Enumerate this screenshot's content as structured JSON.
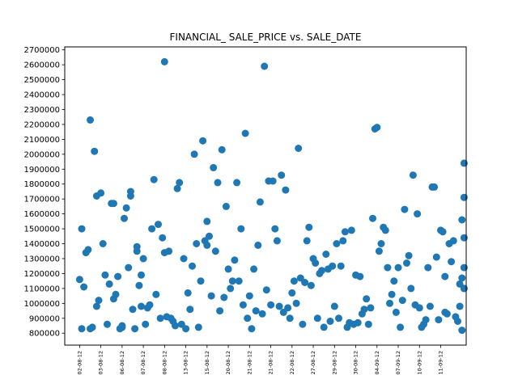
{
  "chart_data": {
    "type": "scatter",
    "title": "FINANCIAL_ SALE_PRICE vs. SALE_DATE",
    "xlabel": "",
    "ylabel": "",
    "ylim": [
      720000,
      2720000
    ],
    "xlim": [
      -7,
      182
    ],
    "grid": false,
    "legend": "none",
    "marker_color": "#1f77b4",
    "yticks": [
      800000,
      900000,
      1000000,
      1100000,
      1200000,
      1300000,
      1400000,
      1500000,
      1600000,
      1700000,
      1800000,
      1900000,
      2000000,
      2100000,
      2200000,
      2300000,
      2400000,
      2500000,
      2600000,
      2700000
    ],
    "ytick_labels": [
      "800000",
      "900000",
      "1000000",
      "1100000",
      "1200000",
      "1300000",
      "1400000",
      "1500000",
      "1600000",
      "1700000",
      "1800000",
      "1900000",
      "2000000",
      "2100000",
      "2200000",
      "2300000",
      "2400000",
      "2500000",
      "2600000",
      "2700000"
    ],
    "xticks": [
      {
        "position": 0,
        "label": "02-08-12"
      },
      {
        "position": 10,
        "label": "03-08-12"
      },
      {
        "position": 20,
        "label": "06-08-12"
      },
      {
        "position": 30,
        "label": "07-08-12"
      },
      {
        "position": 40,
        "label": "08-08-12"
      },
      {
        "position": 50,
        "label": "13-08-12"
      },
      {
        "position": 60,
        "label": "15-08-12"
      },
      {
        "position": 70,
        "label": "20-08-12"
      },
      {
        "position": 80,
        "label": "21-08-12"
      },
      {
        "position": 90,
        "label": "21-08-12"
      },
      {
        "position": 100,
        "label": "22-08-12"
      },
      {
        "position": 110,
        "label": "27-08-12"
      },
      {
        "position": 120,
        "label": "29-08-12"
      },
      {
        "position": 130,
        "label": "30-08-12"
      },
      {
        "position": 140,
        "label": "04-09-12"
      },
      {
        "position": 150,
        "label": "07-09-12"
      },
      {
        "position": 160,
        "label": "10-09-12"
      },
      {
        "position": 170,
        "label": "11-09-12"
      }
    ],
    "points": [
      {
        "x": 0,
        "y": 1160000
      },
      {
        "x": 1,
        "y": 830000
      },
      {
        "x": 1,
        "y": 1500000
      },
      {
        "x": 2,
        "y": 1110000
      },
      {
        "x": 3,
        "y": 1340000
      },
      {
        "x": 4,
        "y": 1360000
      },
      {
        "x": 5,
        "y": 2230000
      },
      {
        "x": 5,
        "y": 830000
      },
      {
        "x": 6,
        "y": 840000
      },
      {
        "x": 7,
        "y": 2020000
      },
      {
        "x": 8,
        "y": 980000
      },
      {
        "x": 8,
        "y": 1720000
      },
      {
        "x": 9,
        "y": 1020000
      },
      {
        "x": 10,
        "y": 1740000
      },
      {
        "x": 11,
        "y": 1400000
      },
      {
        "x": 12,
        "y": 1190000
      },
      {
        "x": 13,
        "y": 860000
      },
      {
        "x": 14,
        "y": 1130000
      },
      {
        "x": 15,
        "y": 1670000
      },
      {
        "x": 16,
        "y": 1670000
      },
      {
        "x": 17,
        "y": 1060000
      },
      {
        "x": 16,
        "y": 1030000
      },
      {
        "x": 18,
        "y": 1180000
      },
      {
        "x": 19,
        "y": 830000
      },
      {
        "x": 20,
        "y": 850000
      },
      {
        "x": 20,
        "y": 840000
      },
      {
        "x": 21,
        "y": 1570000
      },
      {
        "x": 22,
        "y": 1640000
      },
      {
        "x": 23,
        "y": 1240000
      },
      {
        "x": 24,
        "y": 1720000
      },
      {
        "x": 24,
        "y": 1750000
      },
      {
        "x": 25,
        "y": 960000
      },
      {
        "x": 26,
        "y": 830000
      },
      {
        "x": 27,
        "y": 1380000
      },
      {
        "x": 27,
        "y": 1350000
      },
      {
        "x": 28,
        "y": 1120000
      },
      {
        "x": 29,
        "y": 1190000
      },
      {
        "x": 29,
        "y": 980000
      },
      {
        "x": 30,
        "y": 1300000
      },
      {
        "x": 31,
        "y": 860000
      },
      {
        "x": 32,
        "y": 970000
      },
      {
        "x": 33,
        "y": 990000
      },
      {
        "x": 34,
        "y": 1500000
      },
      {
        "x": 35,
        "y": 1830000
      },
      {
        "x": 36,
        "y": 1060000
      },
      {
        "x": 37,
        "y": 1530000
      },
      {
        "x": 38,
        "y": 900000
      },
      {
        "x": 39,
        "y": 1440000
      },
      {
        "x": 40,
        "y": 2620000
      },
      {
        "x": 40,
        "y": 1340000
      },
      {
        "x": 42,
        "y": 1350000
      },
      {
        "x": 41,
        "y": 910000
      },
      {
        "x": 43,
        "y": 900000
      },
      {
        "x": 44,
        "y": 880000
      },
      {
        "x": 45,
        "y": 850000
      },
      {
        "x": 46,
        "y": 1770000
      },
      {
        "x": 47,
        "y": 1810000
      },
      {
        "x": 48,
        "y": 860000
      },
      {
        "x": 49,
        "y": 1300000
      },
      {
        "x": 50,
        "y": 830000
      },
      {
        "x": 51,
        "y": 1070000
      },
      {
        "x": 52,
        "y": 960000
      },
      {
        "x": 53,
        "y": 1250000
      },
      {
        "x": 54,
        "y": 2000000
      },
      {
        "x": 55,
        "y": 1400000
      },
      {
        "x": 56,
        "y": 840000
      },
      {
        "x": 57,
        "y": 1150000
      },
      {
        "x": 58,
        "y": 2090000
      },
      {
        "x": 59,
        "y": 1420000
      },
      {
        "x": 60,
        "y": 1390000
      },
      {
        "x": 60,
        "y": 1550000
      },
      {
        "x": 61,
        "y": 1450000
      },
      {
        "x": 62,
        "y": 1050000
      },
      {
        "x": 63,
        "y": 1910000
      },
      {
        "x": 64,
        "y": 1350000
      },
      {
        "x": 65,
        "y": 1810000
      },
      {
        "x": 66,
        "y": 950000
      },
      {
        "x": 67,
        "y": 2030000
      },
      {
        "x": 68,
        "y": 1040000
      },
      {
        "x": 69,
        "y": 1650000
      },
      {
        "x": 70,
        "y": 1230000
      },
      {
        "x": 71,
        "y": 1100000
      },
      {
        "x": 72,
        "y": 1150000
      },
      {
        "x": 73,
        "y": 1290000
      },
      {
        "x": 74,
        "y": 1810000
      },
      {
        "x": 75,
        "y": 1150000
      },
      {
        "x": 76,
        "y": 1500000
      },
      {
        "x": 77,
        "y": 990000
      },
      {
        "x": 78,
        "y": 2140000
      },
      {
        "x": 79,
        "y": 900000
      },
      {
        "x": 80,
        "y": 1050000
      },
      {
        "x": 81,
        "y": 830000
      },
      {
        "x": 82,
        "y": 1230000
      },
      {
        "x": 83,
        "y": 950000
      },
      {
        "x": 84,
        "y": 1390000
      },
      {
        "x": 85,
        "y": 1680000
      },
      {
        "x": 86,
        "y": 930000
      },
      {
        "x": 87,
        "y": 2590000
      },
      {
        "x": 88,
        "y": 1090000
      },
      {
        "x": 89,
        "y": 1820000
      },
      {
        "x": 90,
        "y": 990000
      },
      {
        "x": 91,
        "y": 1820000
      },
      {
        "x": 92,
        "y": 1500000
      },
      {
        "x": 93,
        "y": 1420000
      },
      {
        "x": 94,
        "y": 980000
      },
      {
        "x": 95,
        "y": 1860000
      },
      {
        "x": 96,
        "y": 940000
      },
      {
        "x": 97,
        "y": 1760000
      },
      {
        "x": 98,
        "y": 970000
      },
      {
        "x": 99,
        "y": 900000
      },
      {
        "x": 100,
        "y": 1070000
      },
      {
        "x": 101,
        "y": 1150000
      },
      {
        "x": 102,
        "y": 1000000
      },
      {
        "x": 103,
        "y": 2040000
      },
      {
        "x": 104,
        "y": 1170000
      },
      {
        "x": 105,
        "y": 860000
      },
      {
        "x": 106,
        "y": 1140000
      },
      {
        "x": 107,
        "y": 1420000
      },
      {
        "x": 108,
        "y": 1510000
      },
      {
        "x": 109,
        "y": 1120000
      },
      {
        "x": 110,
        "y": 1300000
      },
      {
        "x": 111,
        "y": 1270000
      },
      {
        "x": 112,
        "y": 900000
      },
      {
        "x": 113,
        "y": 1200000
      },
      {
        "x": 114,
        "y": 1220000
      },
      {
        "x": 115,
        "y": 840000
      },
      {
        "x": 116,
        "y": 1330000
      },
      {
        "x": 117,
        "y": 1230000
      },
      {
        "x": 118,
        "y": 880000
      },
      {
        "x": 119,
        "y": 1250000
      },
      {
        "x": 120,
        "y": 980000
      },
      {
        "x": 121,
        "y": 1400000
      },
      {
        "x": 122,
        "y": 900000
      },
      {
        "x": 123,
        "y": 1250000
      },
      {
        "x": 124,
        "y": 1420000
      },
      {
        "x": 125,
        "y": 1480000
      },
      {
        "x": 126,
        "y": 840000
      },
      {
        "x": 127,
        "y": 870000
      },
      {
        "x": 128,
        "y": 1490000
      },
      {
        "x": 129,
        "y": 860000
      },
      {
        "x": 130,
        "y": 1190000
      },
      {
        "x": 131,
        "y": 870000
      },
      {
        "x": 132,
        "y": 1180000
      },
      {
        "x": 133,
        "y": 930000
      },
      {
        "x": 134,
        "y": 960000
      },
      {
        "x": 135,
        "y": 1030000
      },
      {
        "x": 136,
        "y": 860000
      },
      {
        "x": 137,
        "y": 970000
      },
      {
        "x": 138,
        "y": 1570000
      },
      {
        "x": 139,
        "y": 2170000
      },
      {
        "x": 140,
        "y": 2180000
      },
      {
        "x": 141,
        "y": 1350000
      },
      {
        "x": 142,
        "y": 1400000
      },
      {
        "x": 143,
        "y": 1510000
      },
      {
        "x": 144,
        "y": 1490000
      },
      {
        "x": 145,
        "y": 1240000
      },
      {
        "x": 146,
        "y": 1000000
      },
      {
        "x": 147,
        "y": 1060000
      },
      {
        "x": 148,
        "y": 1150000
      },
      {
        "x": 149,
        "y": 940000
      },
      {
        "x": 150,
        "y": 1240000
      },
      {
        "x": 151,
        "y": 840000
      },
      {
        "x": 152,
        "y": 1020000
      },
      {
        "x": 153,
        "y": 1630000
      },
      {
        "x": 154,
        "y": 1270000
      },
      {
        "x": 155,
        "y": 1320000
      },
      {
        "x": 156,
        "y": 1100000
      },
      {
        "x": 157,
        "y": 1860000
      },
      {
        "x": 158,
        "y": 990000
      },
      {
        "x": 159,
        "y": 1600000
      },
      {
        "x": 160,
        "y": 970000
      },
      {
        "x": 161,
        "y": 840000
      },
      {
        "x": 162,
        "y": 860000
      },
      {
        "x": 163,
        "y": 890000
      },
      {
        "x": 164,
        "y": 1240000
      },
      {
        "x": 165,
        "y": 980000
      },
      {
        "x": 166,
        "y": 1780000
      },
      {
        "x": 167,
        "y": 1780000
      },
      {
        "x": 168,
        "y": 1310000
      },
      {
        "x": 169,
        "y": 890000
      },
      {
        "x": 170,
        "y": 1490000
      },
      {
        "x": 171,
        "y": 1480000
      },
      {
        "x": 172,
        "y": 940000
      },
      {
        "x": 172,
        "y": 1180000
      },
      {
        "x": 173,
        "y": 930000
      },
      {
        "x": 174,
        "y": 1400000
      },
      {
        "x": 175,
        "y": 1280000
      },
      {
        "x": 176,
        "y": 1420000
      },
      {
        "x": 177,
        "y": 910000
      },
      {
        "x": 178,
        "y": 880000
      },
      {
        "x": 179,
        "y": 1130000
      },
      {
        "x": 180,
        "y": 1560000
      },
      {
        "x": 181,
        "y": 1440000
      },
      {
        "x": 181,
        "y": 1100000
      },
      {
        "x": 179,
        "y": 980000
      },
      {
        "x": 180,
        "y": 1170000
      },
      {
        "x": 181,
        "y": 1710000
      },
      {
        "x": 181,
        "y": 1100000
      },
      {
        "x": 180,
        "y": 820000
      },
      {
        "x": 181,
        "y": 1240000
      },
      {
        "x": 181,
        "y": 1940000
      }
    ]
  }
}
